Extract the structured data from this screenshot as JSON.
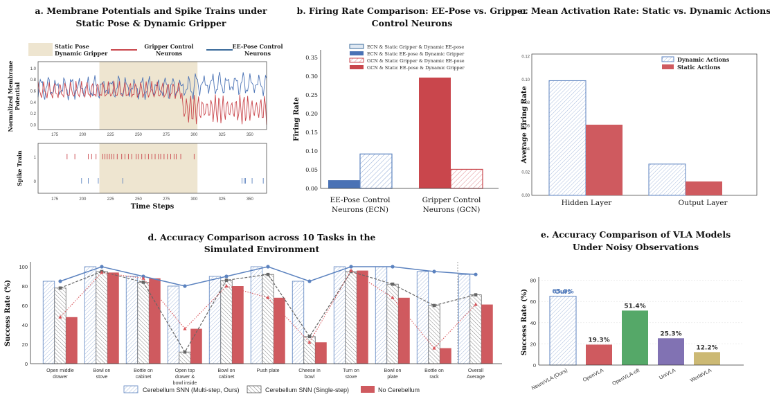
{
  "colors": {
    "blue": "#5b82bf",
    "red": "#c9464c",
    "gray": "#555555",
    "green": "#55a868",
    "purple": "#8172b3",
    "gold": "#ccb974",
    "beige": "#eee5d0"
  },
  "chart_data": [
    {
      "id": "a",
      "type": "line",
      "title": [
        "a. Membrane Potentials and Spike Trains under",
        "Static Pose & Dynamic Gripper"
      ],
      "legend": {
        "shade": [
          "Static Pose",
          "Dynamic Gripper"
        ],
        "red": [
          "Gripper Control",
          "Neurons"
        ],
        "blue": [
          "EE-Pose Control",
          "Neurons"
        ]
      },
      "ylabel": [
        "Normalized Membrane",
        "Potential"
      ],
      "spike_ylabel": "Spike Train",
      "xlabel": "Time Steps",
      "xlim": [
        160,
        365
      ],
      "shade_range": [
        215,
        303
      ],
      "xticks": [
        "175",
        "200",
        "225",
        "250",
        "275",
        "300",
        "325",
        "350"
      ],
      "yticks": [
        "0.0",
        "0.2",
        "0.4",
        "0.6",
        "0.8",
        "1.0"
      ],
      "spike_yticks": [
        "0",
        "1"
      ],
      "red_spikes": [
        186,
        193,
        205,
        208,
        212,
        218,
        220,
        222,
        224,
        226,
        228,
        231,
        235,
        238,
        241,
        244,
        248,
        250,
        253,
        256,
        259,
        262,
        265,
        268,
        270,
        273,
        276,
        279,
        282,
        284,
        288,
        300
      ],
      "blue_spikes": [
        199,
        205,
        214,
        236,
        343,
        345,
        346,
        352,
        362
      ]
    },
    {
      "id": "b",
      "type": "bar",
      "title": [
        "b. Firing Rate Comparison: EE-Pose vs. Gripper",
        "Control Neurons"
      ],
      "categories": [
        [
          "EE-Pose Control",
          "Neurons (ECN)"
        ],
        [
          "Gripper Control",
          "Neurons (GCN)"
        ]
      ],
      "ylabel": "Firing Rate",
      "ylim": [
        0,
        0.37
      ],
      "yticks": [
        "0.00",
        "0.05",
        "0.10",
        "0.15",
        "0.20",
        "0.25",
        "0.30",
        "0.35"
      ],
      "legend": [
        "ECN & Static Gripper & Dynamic EE-pose",
        "ECN & Static EE-pose & Dynamic Gripper",
        "GCN & Static Gripper & Dynamic EE-pose",
        "GCN & Static EE-pose & Dynamic Gripper"
      ],
      "bars": [
        {
          "label": "ECN & Static EE-pose & Dynamic Gripper",
          "value": 0.022
        },
        {
          "label": "ECN & Static Gripper & Dynamic EE-pose",
          "value": 0.092
        },
        {
          "label": "GCN & Static EE-pose & Dynamic Gripper",
          "value": 0.296
        },
        {
          "label": "GCN & Static Gripper & Dynamic EE-pose",
          "value": 0.051
        }
      ]
    },
    {
      "id": "c",
      "type": "bar",
      "title": [
        "c. Mean Activation Rate: Static vs. Dynamic Actions"
      ],
      "categories": [
        "Hidden Layer",
        "Output Layer"
      ],
      "ylabel": "Average Firing Rate",
      "ylim": [
        0,
        0.122
      ],
      "yticks": [
        "0.00",
        "0.02",
        "0.04",
        "0.06",
        "0.08",
        "0.10",
        "0.12"
      ],
      "series": [
        {
          "name": "Dynamic Actions",
          "values": [
            0.099,
            0.027
          ]
        },
        {
          "name": "Static Actions",
          "values": [
            0.061,
            0.012
          ]
        }
      ]
    },
    {
      "id": "d",
      "type": "bar",
      "title": [
        "d. Accuracy Comparison across 10 Tasks in the",
        "Simulated Environment"
      ],
      "categories": [
        [
          "Open middle",
          "drawer"
        ],
        [
          "Bowl on",
          "stove"
        ],
        [
          "Bottle on",
          "cabinet"
        ],
        [
          "Open top",
          "drawer &",
          "bowl inside"
        ],
        [
          "Bowl on",
          "cabinet"
        ],
        [
          "Push plate"
        ],
        [
          "Cheese in",
          "bowl"
        ],
        [
          "Turn on",
          "stove"
        ],
        [
          "Bowl on",
          "plate"
        ],
        [
          "Bottle on",
          "rack"
        ],
        [
          "Overall",
          "Average"
        ]
      ],
      "ylabel": "Success Rate (%)",
      "ylim": [
        0,
        105
      ],
      "yticks": [
        "0",
        "20",
        "40",
        "60",
        "80",
        "100"
      ],
      "series": [
        {
          "name": "Cerebellum SNN (Multi-step, Ours)",
          "values": [
            85,
            100,
            90,
            80,
            90,
            100,
            85,
            100,
            100,
            95,
            92
          ]
        },
        {
          "name": "Cerebellum SNN (Single-step)",
          "values": [
            78,
            95,
            84,
            12,
            86,
            92,
            28,
            95,
            82,
            60,
            71
          ]
        },
        {
          "name": "No Cerebellum",
          "values": [
            48,
            94,
            88,
            36,
            80,
            68,
            22,
            96,
            68,
            16,
            61
          ]
        }
      ]
    },
    {
      "id": "e",
      "type": "bar",
      "title": [
        "e. Accuracy Comparison of VLA Models",
        "Under Noisy Observations"
      ],
      "categories": [
        "NeuroVLA (Ours)",
        "OpenVLA",
        "OpenVLA-oft",
        "UniVLA",
        "WorldVLA"
      ],
      "ylabel": "Success Rate (%)",
      "ylim": [
        0,
        83
      ],
      "yticks": [
        "0",
        "20",
        "40",
        "60",
        "80"
      ],
      "values": [
        65.0,
        19.3,
        51.4,
        25.3,
        12.2
      ],
      "value_labels": [
        "65.0%",
        "19.3%",
        "51.4%",
        "25.3%",
        "12.2%"
      ],
      "highlight": "Ours"
    }
  ]
}
